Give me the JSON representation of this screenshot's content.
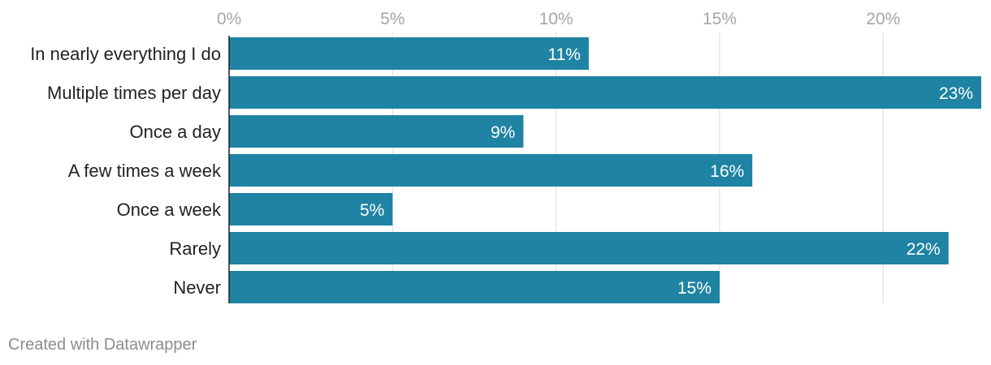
{
  "chart_data": {
    "type": "bar",
    "orientation": "horizontal",
    "categories": [
      "In nearly everything I do",
      "Multiple times per day",
      "Once a day",
      "A few times a week",
      "Once a week",
      "Rarely",
      "Never"
    ],
    "values": [
      11,
      23,
      9,
      16,
      5,
      22,
      15
    ],
    "value_labels": [
      "11%",
      "23%",
      "9%",
      "16%",
      "5%",
      "22%",
      "15%"
    ],
    "x_ticks": [
      0,
      5,
      10,
      15,
      20
    ],
    "x_tick_labels": [
      "0%",
      "5%",
      "10%",
      "15%",
      "20%"
    ],
    "xlim": [
      0,
      23
    ],
    "grid": true,
    "axis_position": "top",
    "colors": {
      "bar": "#1f83a3",
      "grid": "#dcdcdc",
      "axis": "#222222"
    }
  },
  "footer": {
    "credit": "Created with Datawrapper"
  }
}
